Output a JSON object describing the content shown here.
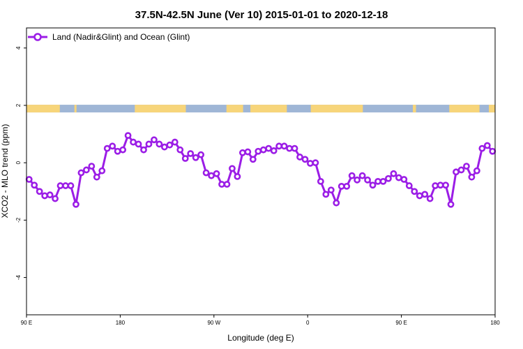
{
  "chart_data": {
    "type": "line",
    "title": "37.5N-42.5N June (Ver 10)   2015-01-01 to 2020-12-18",
    "xlabel": "Longitude (deg E)",
    "ylabel": "XCO2 - MLO trend (ppm)",
    "xlim": [
      90,
      540
    ],
    "ylim": [
      -5.3,
      4.7
    ],
    "x_ticks": [
      {
        "value": 90,
        "label": "90 E"
      },
      {
        "value": 180,
        "label": "180"
      },
      {
        "value": 270,
        "label": "90 W"
      },
      {
        "value": 360,
        "label": "0"
      },
      {
        "value": 450,
        "label": "90 E"
      },
      {
        "value": 540,
        "label": "180"
      }
    ],
    "y_ticks": [
      {
        "value": -4,
        "label": "-4"
      },
      {
        "value": -2,
        "label": "-2"
      },
      {
        "value": 0,
        "label": "0"
      },
      {
        "value": 2,
        "label": "2"
      },
      {
        "value": 4,
        "label": "4"
      }
    ],
    "legend_position": "top-left",
    "grid": false,
    "series": [
      {
        "name": "Land (Nadir&Glint) and Ocean (Glint)",
        "color": "#9b1de6",
        "x": [
          92.5,
          97.5,
          102.5,
          107.5,
          112.5,
          117.5,
          122.5,
          127.5,
          132.5,
          137.5,
          142.5,
          147.5,
          152.5,
          157.5,
          162.5,
          167.5,
          172.5,
          177.5,
          182.5,
          187.5,
          192.5,
          197.5,
          202.5,
          207.5,
          212.5,
          217.5,
          222.5,
          227.5,
          232.5,
          237.5,
          242.5,
          247.5,
          252.5,
          257.5,
          262.5,
          267.5,
          272.5,
          277.5,
          282.5,
          287.5,
          292.5,
          297.5,
          302.5,
          307.5,
          312.5,
          317.5,
          322.5,
          327.5,
          332.5,
          337.5,
          342.5,
          347.5,
          352.5,
          357.5,
          362.5,
          367.5,
          372.5,
          377.5,
          382.5,
          387.5,
          392.5,
          397.5,
          402.5,
          407.5,
          412.5,
          417.5,
          422.5,
          427.5,
          432.5,
          437.5,
          442.5,
          447.5,
          452.5,
          457.5,
          462.5,
          467.5,
          472.5,
          477.5,
          482.5,
          487.5,
          492.5,
          497.5,
          502.5,
          507.5,
          512.5,
          517.5,
          522.5,
          527.5,
          532.5,
          537.5
        ],
        "y": [
          -0.58,
          -0.78,
          -1.0,
          -1.15,
          -1.12,
          -1.25,
          -0.8,
          -0.8,
          -0.8,
          -1.45,
          -0.35,
          -0.25,
          -0.12,
          -0.5,
          -0.28,
          0.5,
          0.58,
          0.4,
          0.45,
          0.95,
          0.72,
          0.65,
          0.45,
          0.65,
          0.8,
          0.65,
          0.55,
          0.62,
          0.72,
          0.45,
          0.15,
          0.32,
          0.18,
          0.28,
          -0.35,
          -0.45,
          -0.38,
          -0.75,
          -0.75,
          -0.2,
          -0.48,
          0.35,
          0.38,
          0.12,
          0.4,
          0.45,
          0.5,
          0.42,
          0.58,
          0.58,
          0.5,
          0.5,
          0.2,
          0.12,
          -0.02,
          0.0,
          -0.65,
          -1.1,
          -0.95,
          -1.4,
          -0.82,
          -0.82,
          -0.45,
          -0.6,
          -0.45,
          -0.6,
          -0.78,
          -0.65,
          -0.65,
          -0.55,
          -0.38,
          -0.52,
          -0.58,
          -0.8,
          -1.0,
          -1.15,
          -1.1,
          -1.25,
          -0.8,
          -0.78,
          -0.78,
          -1.45,
          -0.32,
          -0.25,
          -0.12,
          -0.5,
          -0.28,
          0.5,
          0.6,
          0.4
        ]
      }
    ]
  },
  "landmask": {
    "y_center": 1.9,
    "land_color": "#f7d57a",
    "ocean_color": "#9fb6d6",
    "land_ranges": [
      [
        90,
        122
      ],
      [
        136,
        138
      ],
      [
        194,
        243
      ],
      [
        282,
        298
      ],
      [
        305,
        340
      ],
      [
        363,
        413
      ],
      [
        461,
        464
      ],
      [
        496,
        525
      ],
      [
        534,
        540
      ]
    ]
  }
}
